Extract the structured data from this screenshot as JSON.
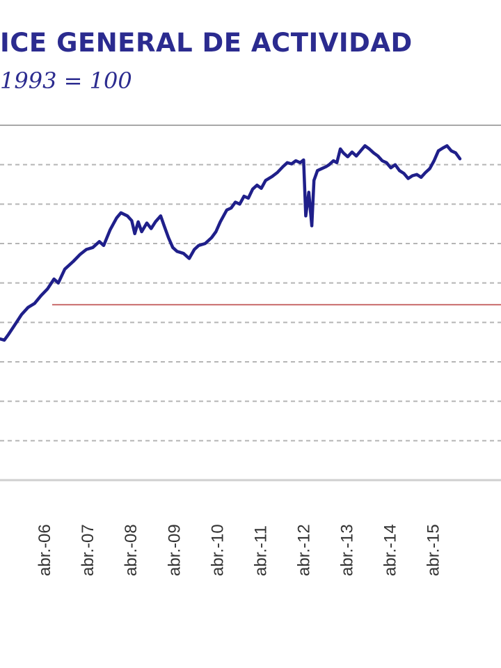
{
  "title": "ICE GENERAL DE ACTIVIDAD",
  "subtitle": "1993 = 100",
  "colors": {
    "title": "#2b2b8f",
    "series": "#1f1f8a",
    "reference": "#c96b6b",
    "grid": "#b5b5b5",
    "axis": "#cfcfcf"
  },
  "chart_data": {
    "type": "line",
    "grid": true,
    "x_tick_labels": [
      "abr.-06",
      "abr.-07",
      "abr.-08",
      "abr.-09",
      "abr.-10",
      "abr.-11",
      "abr.-12",
      "abr.-13",
      "abr.-14",
      "abr.-15"
    ],
    "x_range": [
      2005.0,
      2016.6
    ],
    "y_range": [
      0,
      9
    ],
    "gridlines_y": [
      1,
      2,
      3,
      4,
      5,
      6,
      7,
      8
    ],
    "reference_y": 4.45,
    "series": [
      {
        "name": "",
        "points": [
          [
            2005.0,
            3.58
          ],
          [
            2005.1,
            3.55
          ],
          [
            2005.2,
            3.7
          ],
          [
            2005.35,
            3.95
          ],
          [
            2005.5,
            4.2
          ],
          [
            2005.65,
            4.38
          ],
          [
            2005.8,
            4.48
          ],
          [
            2005.95,
            4.68
          ],
          [
            2006.1,
            4.85
          ],
          [
            2006.25,
            5.1
          ],
          [
            2006.35,
            5.0
          ],
          [
            2006.5,
            5.35
          ],
          [
            2006.7,
            5.55
          ],
          [
            2006.85,
            5.72
          ],
          [
            2007.0,
            5.85
          ],
          [
            2007.15,
            5.9
          ],
          [
            2007.3,
            6.05
          ],
          [
            2007.4,
            5.95
          ],
          [
            2007.55,
            6.35
          ],
          [
            2007.7,
            6.65
          ],
          [
            2007.8,
            6.78
          ],
          [
            2007.95,
            6.7
          ],
          [
            2008.05,
            6.58
          ],
          [
            2008.12,
            6.25
          ],
          [
            2008.2,
            6.55
          ],
          [
            2008.28,
            6.3
          ],
          [
            2008.4,
            6.52
          ],
          [
            2008.5,
            6.38
          ],
          [
            2008.6,
            6.55
          ],
          [
            2008.72,
            6.7
          ],
          [
            2008.8,
            6.45
          ],
          [
            2008.9,
            6.15
          ],
          [
            2009.0,
            5.9
          ],
          [
            2009.1,
            5.8
          ],
          [
            2009.25,
            5.75
          ],
          [
            2009.38,
            5.62
          ],
          [
            2009.5,
            5.85
          ],
          [
            2009.6,
            5.95
          ],
          [
            2009.75,
            6.0
          ],
          [
            2009.9,
            6.15
          ],
          [
            2010.0,
            6.3
          ],
          [
            2010.1,
            6.55
          ],
          [
            2010.25,
            6.85
          ],
          [
            2010.35,
            6.9
          ],
          [
            2010.45,
            7.05
          ],
          [
            2010.55,
            7.0
          ],
          [
            2010.65,
            7.2
          ],
          [
            2010.75,
            7.15
          ],
          [
            2010.85,
            7.38
          ],
          [
            2010.95,
            7.48
          ],
          [
            2011.05,
            7.4
          ],
          [
            2011.15,
            7.6
          ],
          [
            2011.3,
            7.7
          ],
          [
            2011.42,
            7.8
          ],
          [
            2011.55,
            7.95
          ],
          [
            2011.65,
            8.05
          ],
          [
            2011.75,
            8.02
          ],
          [
            2011.85,
            8.1
          ],
          [
            2011.95,
            8.05
          ],
          [
            2012.03,
            8.12
          ],
          [
            2012.08,
            6.7
          ],
          [
            2012.15,
            7.3
          ],
          [
            2012.22,
            6.45
          ],
          [
            2012.27,
            7.6
          ],
          [
            2012.35,
            7.85
          ],
          [
            2012.45,
            7.9
          ],
          [
            2012.55,
            7.95
          ],
          [
            2012.62,
            8.0
          ],
          [
            2012.72,
            8.1
          ],
          [
            2012.8,
            8.05
          ],
          [
            2012.88,
            8.4
          ],
          [
            2012.95,
            8.3
          ],
          [
            2013.05,
            8.2
          ],
          [
            2013.15,
            8.32
          ],
          [
            2013.25,
            8.22
          ],
          [
            2013.35,
            8.35
          ],
          [
            2013.45,
            8.48
          ],
          [
            2013.55,
            8.4
          ],
          [
            2013.65,
            8.3
          ],
          [
            2013.75,
            8.22
          ],
          [
            2013.85,
            8.1
          ],
          [
            2013.95,
            8.05
          ],
          [
            2014.05,
            7.92
          ],
          [
            2014.15,
            8.0
          ],
          [
            2014.25,
            7.85
          ],
          [
            2014.35,
            7.78
          ],
          [
            2014.45,
            7.65
          ],
          [
            2014.55,
            7.72
          ],
          [
            2014.65,
            7.75
          ],
          [
            2014.75,
            7.68
          ],
          [
            2014.85,
            7.8
          ],
          [
            2014.95,
            7.9
          ],
          [
            2015.05,
            8.1
          ],
          [
            2015.15,
            8.35
          ],
          [
            2015.25,
            8.42
          ],
          [
            2015.35,
            8.48
          ],
          [
            2015.45,
            8.35
          ],
          [
            2015.55,
            8.3
          ],
          [
            2015.65,
            8.15
          ]
        ]
      }
    ]
  }
}
